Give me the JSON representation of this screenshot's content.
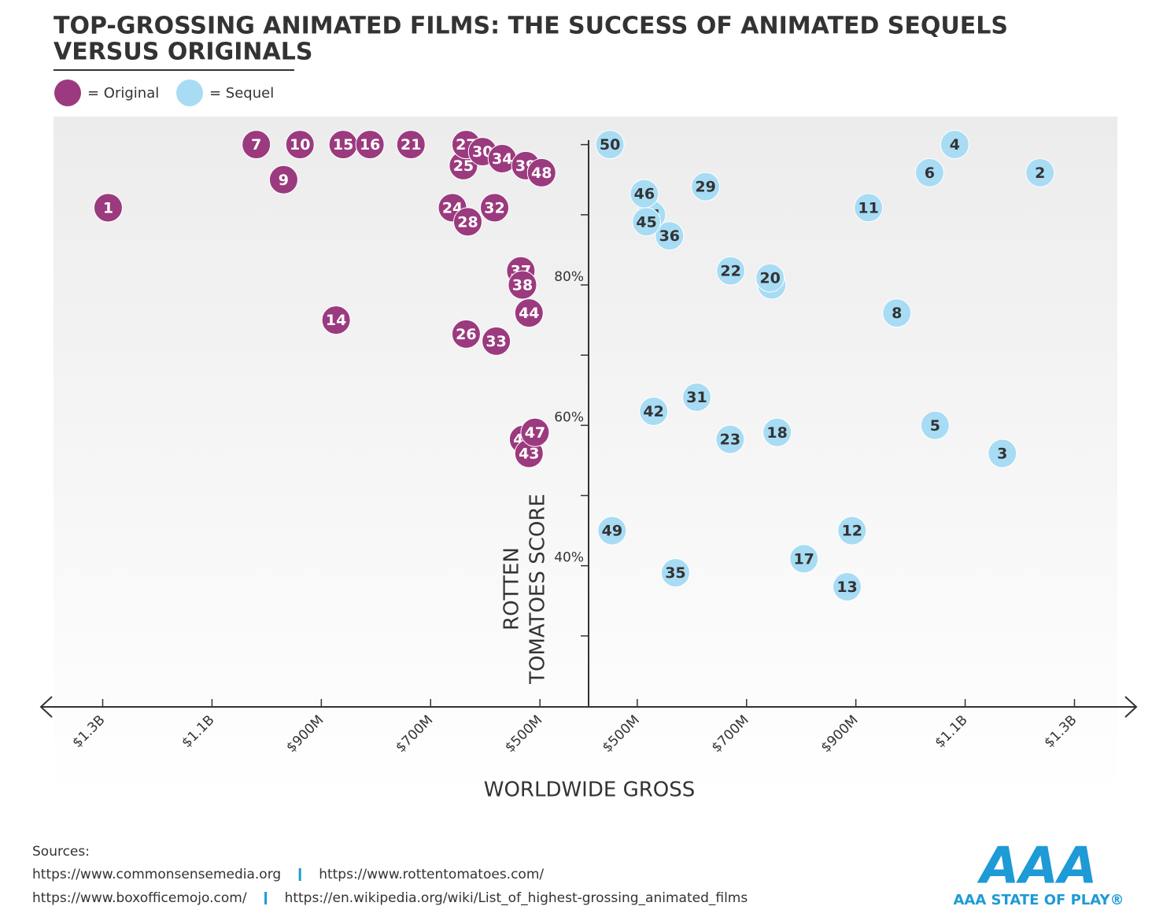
{
  "chart_data": {
    "type": "scatter",
    "title": [
      "TOP-GROSSING ANIMATED FILMS: THE SUCCESS OF ANIMATED SEQUELS",
      "VERSUS ORIGINALS"
    ],
    "xlabel": "WORLDWIDE GROSS",
    "ylabel": [
      "ROTTEN",
      "TOMATOES SCORE"
    ],
    "mirrored_x": true,
    "xlim": [
      411,
      1390
    ],
    "xticks": [
      {
        "value": 1300,
        "label": "$1.3B"
      },
      {
        "value": 1100,
        "label": "$1.1B"
      },
      {
        "value": 900,
        "label": "$900M"
      },
      {
        "value": 700,
        "label": "$700M"
      },
      {
        "value": 500,
        "label": "$500M"
      }
    ],
    "ylim": [
      20,
      104
    ],
    "yticks": [
      {
        "value": 40,
        "label": "40%"
      },
      {
        "value": 60,
        "label": "60%"
      },
      {
        "value": 80,
        "label": "80%"
      }
    ],
    "y_minor_ticks": [
      30,
      50,
      70,
      90,
      100
    ],
    "series": [
      {
        "name": "= Original",
        "color": "#9b3a7e",
        "label_color": "#ffffff",
        "xside": "left",
        "labels": [
          "1",
          "7",
          "9",
          "10",
          "14",
          "15",
          "16",
          "21",
          "24",
          "25",
          "26",
          "27",
          "28",
          "30",
          "32",
          "33",
          "34",
          "37",
          "38",
          "39",
          "40",
          "43",
          "44",
          "47",
          "48"
        ],
        "x": [
          1290,
          1019,
          969,
          939,
          873,
          860,
          811,
          736,
          660,
          640,
          635,
          635,
          632,
          605,
          583,
          580,
          569,
          535,
          532,
          526,
          530,
          520,
          520,
          509,
          497
        ],
        "values": [
          91,
          100,
          95,
          100,
          75,
          100,
          100,
          100,
          91,
          97,
          73,
          100,
          89,
          99,
          91,
          72,
          98,
          82,
          80,
          97,
          58,
          56,
          76,
          59,
          96
        ]
      },
      {
        "name": "= Sequel",
        "color": "#a8dcf4",
        "label_color": "#333333",
        "xside": "right",
        "labels": [
          "2",
          "3",
          "4",
          "5",
          "6",
          "8",
          "11",
          "12",
          "13",
          "17",
          "18",
          "19",
          "20",
          "22",
          "23",
          "29",
          "31",
          "35",
          "36",
          "41",
          "42",
          "45",
          "46",
          "49",
          "50"
        ],
        "x": [
          1237,
          1168,
          1081,
          1045,
          1035,
          975,
          923,
          893,
          884,
          805,
          756,
          746,
          743,
          671,
          670,
          625,
          609,
          570,
          559,
          526,
          530,
          517,
          513,
          454,
          450
        ],
        "values": [
          96,
          56,
          100,
          60,
          96,
          76,
          91,
          45,
          37,
          41,
          59,
          80,
          81,
          82,
          58,
          94,
          64,
          39,
          87,
          90,
          62,
          89,
          93,
          45,
          100
        ]
      }
    ],
    "sources_title": "Sources:",
    "sources": [
      [
        "https://www.commonsensemedia.org",
        "https://www.rottentomatoes.com/"
      ],
      [
        "https://www.boxofficemojo.com/",
        "https://en.wikipedia.org/wiki/List_of_highest-grossing_animated_films"
      ]
    ],
    "logo": {
      "mark": "AAA",
      "text": "AAA STATE OF PLAY®"
    }
  }
}
